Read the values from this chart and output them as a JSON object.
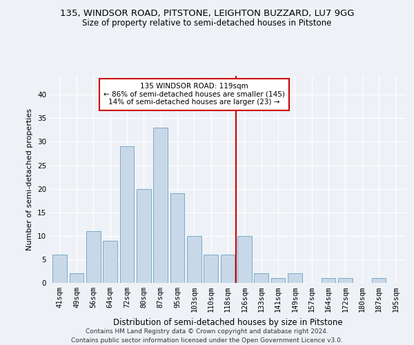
{
  "title": "135, WINDSOR ROAD, PITSTONE, LEIGHTON BUZZARD, LU7 9GG",
  "subtitle": "Size of property relative to semi-detached houses in Pitstone",
  "xlabel": "Distribution of semi-detached houses by size in Pitstone",
  "ylabel": "Number of semi-detached properties",
  "categories": [
    "41sqm",
    "49sqm",
    "56sqm",
    "64sqm",
    "72sqm",
    "80sqm",
    "87sqm",
    "95sqm",
    "103sqm",
    "110sqm",
    "118sqm",
    "126sqm",
    "133sqm",
    "141sqm",
    "149sqm",
    "157sqm",
    "164sqm",
    "172sqm",
    "180sqm",
    "187sqm",
    "195sqm"
  ],
  "values": [
    6,
    2,
    11,
    9,
    29,
    20,
    33,
    19,
    10,
    6,
    6,
    10,
    2,
    1,
    2,
    0,
    1,
    1,
    0,
    1,
    0
  ],
  "bar_color": "#c8d8e8",
  "bar_edgecolor": "#7aaac8",
  "highlight_index": 10,
  "highlight_color": "#cc0000",
  "annotation_text": "135 WINDSOR ROAD: 119sqm\n← 86% of semi-detached houses are smaller (145)\n14% of semi-detached houses are larger (23) →",
  "annotation_box_color": "#ffffff",
  "annotation_box_edgecolor": "#cc0000",
  "ylim": [
    0,
    44
  ],
  "yticks": [
    0,
    5,
    10,
    15,
    20,
    25,
    30,
    35,
    40
  ],
  "background_color": "#eef2f7",
  "footer_line1": "Contains HM Land Registry data © Crown copyright and database right 2024.",
  "footer_line2": "Contains public sector information licensed under the Open Government Licence v3.0.",
  "title_fontsize": 9.5,
  "subtitle_fontsize": 8.5,
  "xlabel_fontsize": 8.5,
  "ylabel_fontsize": 8,
  "tick_fontsize": 7.5,
  "annotation_fontsize": 7.5,
  "footer_fontsize": 6.5
}
